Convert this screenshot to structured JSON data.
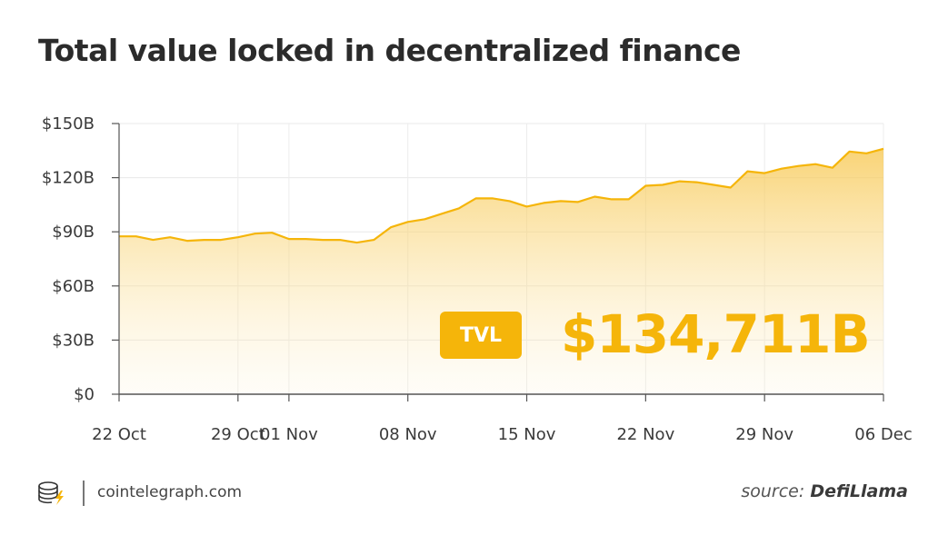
{
  "header": {
    "title": "Total value locked in decentralized finance"
  },
  "badge": {
    "label": "TVL",
    "value": "$134,711B"
  },
  "footer": {
    "site": "cointelegraph.com",
    "source_prefix": "source: ",
    "source_name": "DefiLlama"
  },
  "colors": {
    "accent": "#f5b50a",
    "line": "#f5b50a"
  },
  "chart_data": {
    "type": "area",
    "title": "Total value locked in decentralized finance",
    "xlabel": "",
    "ylabel": "",
    "ylim": [
      0,
      150
    ],
    "y_unit": "billion USD",
    "yticks": [
      0,
      30,
      60,
      90,
      120,
      150
    ],
    "ytick_labels": [
      "$0",
      "$30B",
      "$60B",
      "$90B",
      "$120B",
      "$150B"
    ],
    "x_start": "2021-10-22",
    "xticks": [
      "2021-10-22",
      "2021-10-29",
      "2021-11-01",
      "2021-11-08",
      "2021-11-15",
      "2021-11-22",
      "2021-11-29",
      "2021-12-06"
    ],
    "xtick_labels": [
      "22 Oct",
      "29 Oct",
      "01 Nov",
      "08 Nov",
      "15 Nov",
      "22 Nov",
      "29 Nov",
      "06 Dec"
    ],
    "grid": true,
    "x": [
      "2021-10-22",
      "2021-10-23",
      "2021-10-24",
      "2021-10-25",
      "2021-10-26",
      "2021-10-27",
      "2021-10-28",
      "2021-10-29",
      "2021-10-30",
      "2021-10-31",
      "2021-11-01",
      "2021-11-02",
      "2021-11-03",
      "2021-11-04",
      "2021-11-05",
      "2021-11-06",
      "2021-11-07",
      "2021-11-08",
      "2021-11-09",
      "2021-11-10",
      "2021-11-11",
      "2021-11-12",
      "2021-11-13",
      "2021-11-14",
      "2021-11-15",
      "2021-11-16",
      "2021-11-17",
      "2021-11-18",
      "2021-11-19",
      "2021-11-20",
      "2021-11-21",
      "2021-11-22",
      "2021-11-23",
      "2021-11-24",
      "2021-11-25",
      "2021-11-26",
      "2021-11-27",
      "2021-11-28",
      "2021-11-29",
      "2021-11-30",
      "2021-12-01",
      "2021-12-02",
      "2021-12-03",
      "2021-12-04",
      "2021-12-05",
      "2021-12-06"
    ],
    "series": [
      {
        "values": [
          87.5,
          87.5,
          85.5,
          87.0,
          85.0,
          85.5,
          85.5,
          87.0,
          89.0,
          89.5,
          86.0,
          86.0,
          85.5,
          85.5,
          84.0,
          85.5,
          92.5,
          95.5,
          97.0,
          100.0,
          103.0,
          108.5,
          108.5,
          107.0,
          104.0,
          106.0,
          107.0,
          106.5,
          109.5,
          108.0,
          108.0,
          115.5,
          116.0,
          118.0,
          117.5,
          116.0,
          114.5,
          123.5,
          122.5,
          125.0,
          126.5,
          127.5,
          125.5,
          134.5,
          133.5,
          136.0
        ]
      }
    ]
  }
}
